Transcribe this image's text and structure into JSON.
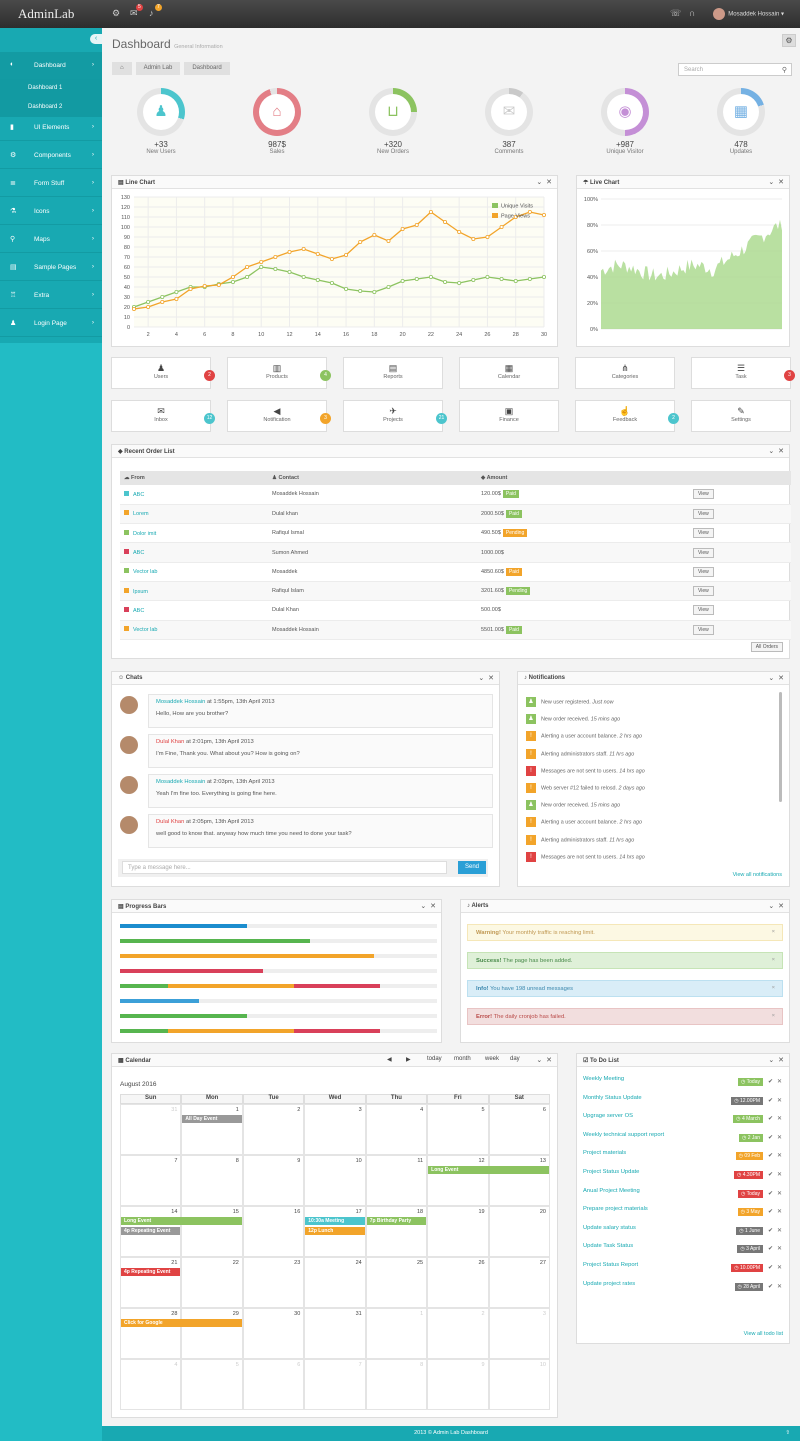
{
  "topbar": {
    "brand": "AdminLab",
    "mail_count": "5",
    "bell_count": "7",
    "user_name": "Mosaddek Hossain ▾"
  },
  "sidebar": {
    "items": [
      {
        "label": "Dashboard",
        "icon": "dashboard-icon",
        "glyph": "◐"
      },
      {
        "label": "UI Elements",
        "icon": "book-icon",
        "glyph": "▮"
      },
      {
        "label": "Components",
        "icon": "cogs-icon",
        "glyph": "⚙"
      },
      {
        "label": "Form Stuff",
        "icon": "list-icon",
        "glyph": "≣"
      },
      {
        "label": "Icons",
        "icon": "flask-icon",
        "glyph": "⚗"
      },
      {
        "label": "Maps",
        "icon": "map-marker-icon",
        "glyph": "⚲"
      },
      {
        "label": "Sample Pages",
        "icon": "file-icon",
        "glyph": "▤"
      },
      {
        "label": "Extra",
        "icon": "trophy-icon",
        "glyph": "♖"
      },
      {
        "label": "Login Page",
        "icon": "user-icon",
        "glyph": "♟"
      }
    ],
    "sub": [
      "Dashboard 1",
      "Dashboard 2"
    ]
  },
  "page": {
    "title": "Dashboard",
    "subtitle": "General Information",
    "crumbs": [
      "⌂",
      "Admin Lab",
      "Dashboard"
    ],
    "search_placeholder": "Search"
  },
  "stats": [
    {
      "value": "+33",
      "label": "New Users",
      "color": "#4cc5cd",
      "glyph": "♟",
      "pct": 0.3
    },
    {
      "value": "987$",
      "label": "Sales",
      "color": "#e37e86",
      "glyph": "⌂",
      "pct": 0.95
    },
    {
      "value": "+320",
      "label": "New Orders",
      "color": "#8cc360",
      "glyph": "⊔",
      "pct": 0.25
    },
    {
      "value": "387",
      "label": "Comments",
      "color": "#c9c9c9",
      "glyph": "✉",
      "pct": 0.1
    },
    {
      "value": "+987",
      "label": "Unique Visitor",
      "color": "#c48fd6",
      "glyph": "◉",
      "pct": 0.5
    },
    {
      "value": "478",
      "label": "Updates",
      "color": "#75b1e3",
      "glyph": "▦",
      "pct": 0.2
    }
  ],
  "line_chart": {
    "title": "Line Chart"
  },
  "live_chart": {
    "title": "Live Chart"
  },
  "chart_data": [
    {
      "type": "line",
      "title": "Line Chart",
      "ylim": [
        0,
        130
      ],
      "xlim": [
        1,
        30
      ],
      "yticks": [
        0,
        10,
        20,
        30,
        40,
        50,
        60,
        70,
        80,
        90,
        100,
        110,
        120,
        130
      ],
      "xticks": [
        2,
        4,
        6,
        8,
        10,
        12,
        14,
        16,
        18,
        20,
        22,
        24,
        26,
        28,
        30
      ],
      "legend": "top-right",
      "series": [
        {
          "name": "Unique Visits",
          "color": "#8cc360",
          "x": [
            1,
            2,
            3,
            4,
            5,
            6,
            7,
            8,
            9,
            10,
            11,
            12,
            13,
            14,
            15,
            16,
            17,
            18,
            19,
            20,
            21,
            22,
            23,
            24,
            25,
            26,
            27,
            28,
            29,
            30
          ],
          "values": [
            20,
            25,
            30,
            35,
            40,
            40,
            43,
            45,
            50,
            60,
            58,
            55,
            50,
            47,
            44,
            38,
            36,
            35,
            40,
            46,
            48,
            50,
            45,
            44,
            47,
            50,
            48,
            46,
            48,
            50
          ]
        },
        {
          "name": "Page Views",
          "color": "#f2a42a",
          "x": [
            1,
            2,
            3,
            4,
            5,
            6,
            7,
            8,
            9,
            10,
            11,
            12,
            13,
            14,
            15,
            16,
            17,
            18,
            19,
            20,
            21,
            22,
            23,
            24,
            25,
            26,
            27,
            28,
            29,
            30
          ],
          "values": [
            18,
            20,
            25,
            28,
            38,
            41,
            42,
            50,
            60,
            65,
            70,
            75,
            78,
            73,
            68,
            72,
            85,
            92,
            86,
            98,
            102,
            115,
            105,
            95,
            88,
            90,
            100,
            110,
            115,
            112
          ]
        }
      ]
    },
    {
      "type": "area",
      "title": "Live Chart",
      "ylim": [
        0,
        100
      ],
      "yticks": [
        "0%",
        "20%",
        "40%",
        "60%",
        "80%",
        "100%"
      ],
      "color": "#8cc360"
    }
  ],
  "tiles": [
    {
      "label": "Users",
      "glyph": "♟",
      "badge": "2",
      "badge_color": "#e04343"
    },
    {
      "label": "Products",
      "glyph": "▥",
      "badge": "4",
      "badge_color": "#8cc360"
    },
    {
      "label": "Reports",
      "glyph": "▤",
      "badge": "",
      "badge_color": ""
    },
    {
      "label": "Calendar",
      "glyph": "▦",
      "badge": "",
      "badge_color": ""
    },
    {
      "label": "Categories",
      "glyph": "⋔",
      "badge": "",
      "badge_color": ""
    },
    {
      "label": "Task",
      "glyph": "☰",
      "badge": "3",
      "badge_color": "#e04343"
    },
    {
      "label": "Inbox",
      "glyph": "✉",
      "badge": "12",
      "badge_color": "#4cc5cd"
    },
    {
      "label": "Notification",
      "glyph": "◀",
      "badge": "3",
      "badge_color": "#f2a42a"
    },
    {
      "label": "Projects",
      "glyph": "✈",
      "badge": "21",
      "badge_color": "#4cc5cd"
    },
    {
      "label": "Finance",
      "glyph": "▣",
      "badge": "",
      "badge_color": ""
    },
    {
      "label": "Feedback",
      "glyph": "☝",
      "badge": "2",
      "badge_color": "#4cc5cd"
    },
    {
      "label": "Settings",
      "glyph": "✎",
      "badge": "",
      "badge_color": ""
    }
  ],
  "orders": {
    "title": "Recent Order List",
    "headers": [
      "From",
      "Contact",
      "Amount",
      ""
    ],
    "all_button": "All Orders",
    "view": "View",
    "rows": [
      {
        "from": "ABC",
        "color": "#4cc5cd",
        "contact": "Mosaddek Hossain",
        "amount": "120.00$",
        "status": "Paid",
        "scolor": "#8cc360"
      },
      {
        "from": "Lorem",
        "color": "#f2a42a",
        "contact": "Dulal khan",
        "amount": "2000.50$",
        "status": "Paid",
        "scolor": "#8cc360"
      },
      {
        "from": "Dolor imit",
        "color": "#8cc360",
        "contact": "Rafiqul Ismal",
        "amount": "490.50$",
        "status": "Pending",
        "scolor": "#f2a42a"
      },
      {
        "from": "ABC",
        "color": "#d9405a",
        "contact": "Sumon Ahmed",
        "amount": "1000.00$",
        "status": "",
        "scolor": ""
      },
      {
        "from": "Vector lab",
        "color": "#8cc360",
        "contact": "Mosaddek",
        "amount": "4850.60$",
        "status": "Paid",
        "scolor": "#f2a42a"
      },
      {
        "from": "Ipsum",
        "color": "#f2a42a",
        "contact": "Rafiqul Islam",
        "amount": "3201.60$",
        "status": "Pending",
        "scolor": "#8cc360"
      },
      {
        "from": "ABC",
        "color": "#d9405a",
        "contact": "Dulal Khan",
        "amount": "500.00$",
        "status": "",
        "scolor": ""
      },
      {
        "from": "Vector lab",
        "color": "#f2a42a",
        "contact": "Mosaddek Hossain",
        "amount": "5501.00$",
        "status": "Paid",
        "scolor": "#8cc360"
      }
    ]
  },
  "chats": {
    "title": "Chats",
    "placeholder": "Type a message here...",
    "send": "Send",
    "messages": [
      {
        "name": "Mosaddek Hossain",
        "name_color": "#18a9b2",
        "time": "at 1:55pm, 13th April 2013",
        "text": "Hello, How are you brother?"
      },
      {
        "name": "Dulal Khan",
        "name_color": "#e04343",
        "time": "at 2:01pm, 13th April 2013",
        "text": "I'm Fine, Thank you. What about you? How is going on?"
      },
      {
        "name": "Mosaddek Hossain",
        "name_color": "#18a9b2",
        "time": "at 2:03pm, 13th April 2013",
        "text": "Yeah I'm fine too. Everything is going fine here."
      },
      {
        "name": "Dulal Khan",
        "name_color": "#e04343",
        "time": "at 2:05pm, 13th April 2013",
        "text": "well good to know that. anyway how much time you need to done your task?"
      }
    ]
  },
  "notifications": {
    "title": "Notifications",
    "view_all": "View all notifications",
    "items": [
      {
        "text": "New user registered.",
        "time": "Just now",
        "color": "#8cc360",
        "glyph": "♟"
      },
      {
        "text": "New order received.",
        "time": "15 mins ago",
        "color": "#8cc360",
        "glyph": "♟"
      },
      {
        "text": "Alerting a user account balance.",
        "time": "2 hrs ago",
        "color": "#f2a42a",
        "glyph": "!"
      },
      {
        "text": "Alerting administrators staff.",
        "time": "11 hrs ago",
        "color": "#f2a42a",
        "glyph": "!"
      },
      {
        "text": "Messages are not sent to users.",
        "time": "14 hrs ago",
        "color": "#e04343",
        "glyph": "!"
      },
      {
        "text": "Web server #12 failed to relosd.",
        "time": "2 days ago",
        "color": "#f2a42a",
        "glyph": "!"
      },
      {
        "text": "New order received.",
        "time": "15 mins ago",
        "color": "#8cc360",
        "glyph": "♟"
      },
      {
        "text": "Alerting a user account balance.",
        "time": "2 hrs ago",
        "color": "#f2a42a",
        "glyph": "!"
      },
      {
        "text": "Alerting administrators staff.",
        "time": "11 hrs ago",
        "color": "#f2a42a",
        "glyph": "!"
      },
      {
        "text": "Messages are not sent to users.",
        "time": "14 hrs ago",
        "color": "#e04343",
        "glyph": "!"
      }
    ]
  },
  "progress": {
    "title": "Progress Bars",
    "bars": [
      {
        "segments": [
          {
            "pct": 40,
            "color": "#1c8dce"
          }
        ]
      },
      {
        "segments": [
          {
            "pct": 60,
            "color": "#57b54f"
          }
        ]
      },
      {
        "segments": [
          {
            "pct": 80,
            "color": "#f2a42a"
          }
        ]
      },
      {
        "segments": [
          {
            "pct": 45,
            "color": "#d9405a"
          }
        ]
      },
      {
        "segments": [
          {
            "pct": 15,
            "color": "#57b54f"
          },
          {
            "pct": 40,
            "color": "#f2a42a"
          },
          {
            "pct": 27,
            "color": "#d9405a"
          }
        ]
      },
      {
        "segments": [
          {
            "pct": 25,
            "color": "#3ca0d8"
          }
        ]
      },
      {
        "segments": [
          {
            "pct": 40,
            "color": "#57b54f"
          }
        ]
      },
      {
        "segments": [
          {
            "pct": 15,
            "color": "#57b54f"
          },
          {
            "pct": 40,
            "color": "#f2a42a"
          },
          {
            "pct": 27,
            "color": "#d9405a"
          }
        ]
      }
    ]
  },
  "alerts": {
    "title": "Alerts",
    "items": [
      {
        "strong": "Warning!",
        "text": " Your monthly traffic is reaching limit.",
        "bg": "#fcf8e3",
        "border": "#f5e7b8",
        "color": "#c09853"
      },
      {
        "strong": "Success!",
        "text": " The page has been added.",
        "bg": "#dff0d8",
        "border": "#c6e4b6",
        "color": "#468847"
      },
      {
        "strong": "Info!",
        "text": " You have 198 unread messages",
        "bg": "#d9edf7",
        "border": "#bce0f0",
        "color": "#3a87ad"
      },
      {
        "strong": "Error!",
        "text": " The daily cronjob has failed.",
        "bg": "#f2dede",
        "border": "#e8c4c4",
        "color": "#b94a48"
      }
    ]
  },
  "calendar": {
    "title": "Calendar",
    "month": "August 2016",
    "buttons": [
      "today",
      "month",
      "week",
      "day"
    ],
    "days": [
      "Sun",
      "Mon",
      "Tue",
      "Wed",
      "Thu",
      "Fri",
      "Sat"
    ],
    "weeks": [
      [
        "31",
        "1",
        "2",
        "3",
        "4",
        "5",
        "6"
      ],
      [
        "7",
        "8",
        "9",
        "10",
        "11",
        "12",
        "13"
      ],
      [
        "14",
        "15",
        "16",
        "17",
        "18",
        "19",
        "20"
      ],
      [
        "21",
        "22",
        "23",
        "24",
        "25",
        "26",
        "27"
      ],
      [
        "28",
        "29",
        "30",
        "31",
        "1",
        "2",
        "3"
      ],
      [
        "4",
        "5",
        "6",
        "7",
        "8",
        "9",
        "10"
      ]
    ],
    "events": [
      {
        "label": "All Day Event",
        "color": "#999",
        "week": 0,
        "day": 1,
        "span": 1,
        "row": 0
      },
      {
        "label": "Long Event",
        "color": "#8cc360",
        "week": 1,
        "day": 5,
        "span": 2,
        "row": 0
      },
      {
        "label": "Long Event",
        "color": "#8cc360",
        "week": 2,
        "day": 0,
        "span": 2,
        "row": 0
      },
      {
        "label": "4p Repeating Event",
        "color": "#999",
        "week": 2,
        "day": 0,
        "span": 1,
        "row": 1
      },
      {
        "label": "10:30a Meeting",
        "color": "#4cc5cd",
        "week": 2,
        "day": 3,
        "span": 1,
        "row": 0
      },
      {
        "label": "12p Lunch",
        "color": "#f2a42a",
        "week": 2,
        "day": 3,
        "span": 1,
        "row": 1
      },
      {
        "label": "7p Birthday Party",
        "color": "#8cc360",
        "week": 2,
        "day": 4,
        "span": 1,
        "row": 0
      },
      {
        "label": "4p Repeating Event",
        "color": "#e04343",
        "week": 3,
        "day": 0,
        "span": 1,
        "row": 0
      },
      {
        "label": "Click for Google",
        "color": "#f2a42a",
        "week": 4,
        "day": 0,
        "span": 2,
        "row": 0
      }
    ]
  },
  "todo": {
    "title": "To Do List",
    "view_all": "View all todo list",
    "items": [
      {
        "text": "Weekly Meeting",
        "tag": "Today",
        "color": "#8cc360"
      },
      {
        "text": "Monthly Status Update",
        "tag": "12.00PM",
        "color": "#777"
      },
      {
        "text": "Upgrage server OS",
        "tag": "4 March",
        "color": "#8cc360"
      },
      {
        "text": "Weekly technical support report",
        "tag": "2 Jan",
        "color": "#8cc360"
      },
      {
        "text": "Project materials",
        "tag": "09 Feb",
        "color": "#f2a42a"
      },
      {
        "text": "Project Status Update",
        "tag": "4.30PM",
        "color": "#e04343"
      },
      {
        "text": "Anual Project Meeting",
        "tag": "Today",
        "color": "#e04343"
      },
      {
        "text": "Prepare project materials",
        "tag": "3 May",
        "color": "#f2a42a"
      },
      {
        "text": "Update salary status",
        "tag": "1 June",
        "color": "#777"
      },
      {
        "text": "Update Task Status",
        "tag": "3 April",
        "color": "#777"
      },
      {
        "text": "Project Status Report",
        "tag": "10.00PM",
        "color": "#e04343"
      },
      {
        "text": "Update project rates",
        "tag": "28 April",
        "color": "#777"
      }
    ]
  },
  "footer": {
    "text": "2013 © Admin Lab Dashboard"
  }
}
